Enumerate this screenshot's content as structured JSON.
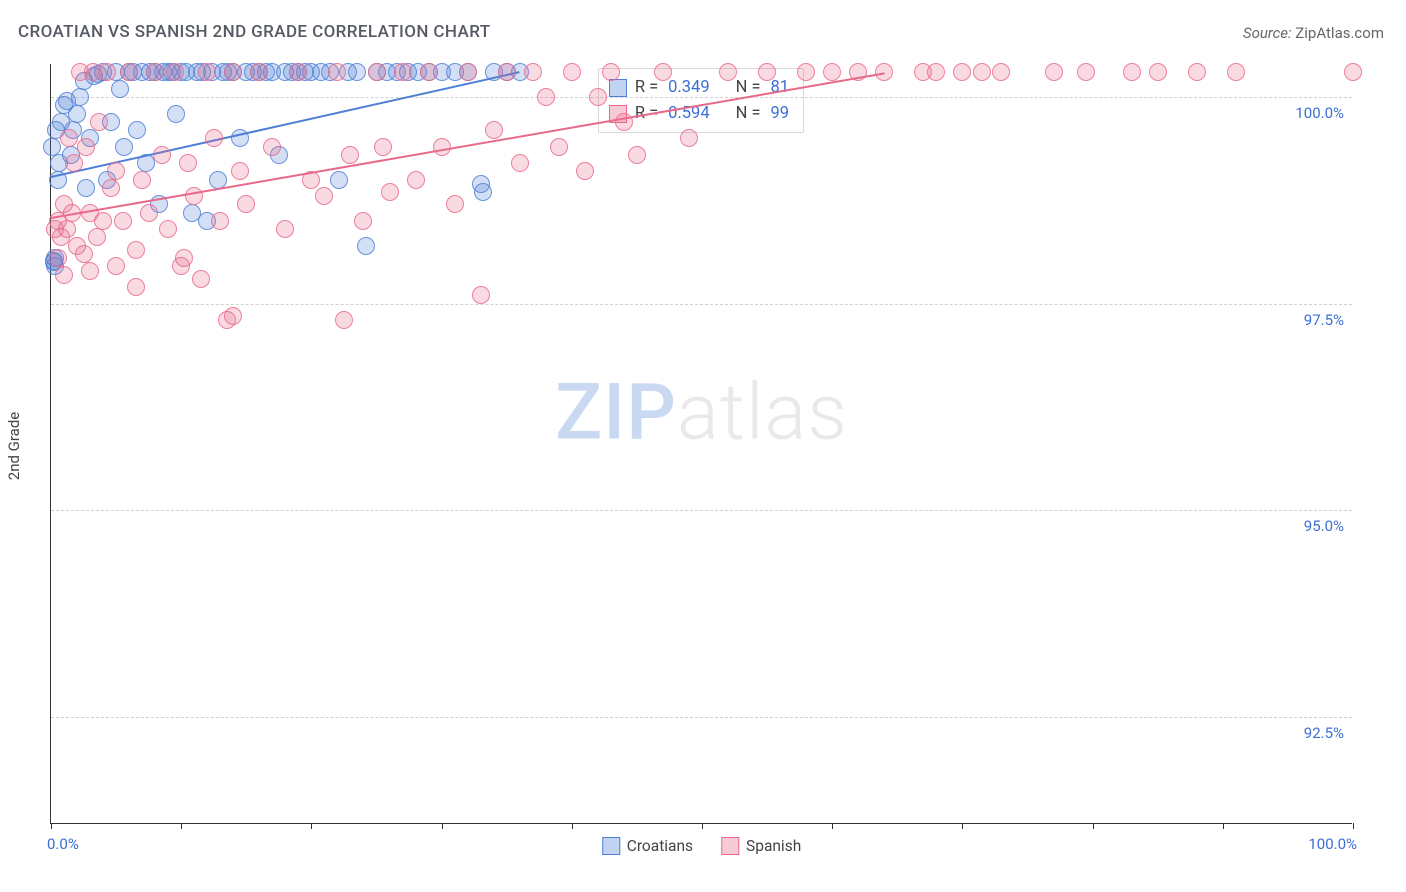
{
  "title": "CROATIAN VS SPANISH 2ND GRADE CORRELATION CHART",
  "source_label": "Source: ",
  "source_value": "ZipAtlas.com",
  "y_axis_label": "2nd Grade",
  "watermark": {
    "part1": "ZIP",
    "part2": "atlas"
  },
  "chart": {
    "type": "scatter",
    "background_color": "#ffffff",
    "grid_color": "#d0d0d0",
    "axis_color": "#333333",
    "xlim": [
      0,
      100
    ],
    "ylim": [
      91.2,
      100.4
    ],
    "xtick_positions": [
      0,
      10,
      20,
      30,
      40,
      50,
      60,
      70,
      80,
      90,
      100
    ],
    "xtick_labels": {
      "0": "0.0%",
      "100": "100.0%"
    },
    "ytick_positions": [
      92.5,
      95.0,
      97.5,
      100.0
    ],
    "ytick_labels": [
      "92.5%",
      "95.0%",
      "97.5%",
      "100.0%"
    ],
    "marker_radius": 9,
    "marker_fill_opacity": 0.25,
    "marker_stroke_opacity": 0.8,
    "marker_stroke_width": 1.2,
    "series": [
      {
        "name": "Croatians",
        "color": "#4f7fd6",
        "R": "0.349",
        "N": "81",
        "trend": {
          "x1": 0,
          "y1": 99.05,
          "x2": 36,
          "y2": 100.32
        },
        "points": [
          [
            0.2,
            98.0
          ],
          [
            0.3,
            98.05
          ],
          [
            0.1,
            99.4
          ],
          [
            0.5,
            99.0
          ],
          [
            0.6,
            99.2
          ],
          [
            0.4,
            99.6
          ],
          [
            0.8,
            99.7
          ],
          [
            1.0,
            99.9
          ],
          [
            1.2,
            99.95
          ],
          [
            1.5,
            99.3
          ],
          [
            1.7,
            99.6
          ],
          [
            2.0,
            99.8
          ],
          [
            2.2,
            100.0
          ],
          [
            2.5,
            100.2
          ],
          [
            2.7,
            98.9
          ],
          [
            3.0,
            99.5
          ],
          [
            3.3,
            100.25
          ],
          [
            3.6,
            100.28
          ],
          [
            4.0,
            100.3
          ],
          [
            4.3,
            99.0
          ],
          [
            4.6,
            99.7
          ],
          [
            5.0,
            100.3
          ],
          [
            5.3,
            100.1
          ],
          [
            5.6,
            99.4
          ],
          [
            6.0,
            100.3
          ],
          [
            6.3,
            100.3
          ],
          [
            6.6,
            99.6
          ],
          [
            7.0,
            100.3
          ],
          [
            7.3,
            99.2
          ],
          [
            7.6,
            100.3
          ],
          [
            8.0,
            100.3
          ],
          [
            8.3,
            98.7
          ],
          [
            8.6,
            100.3
          ],
          [
            9.0,
            100.3
          ],
          [
            9.3,
            100.3
          ],
          [
            9.6,
            99.8
          ],
          [
            10.0,
            100.3
          ],
          [
            10.4,
            100.3
          ],
          [
            10.8,
            98.6
          ],
          [
            11.2,
            100.3
          ],
          [
            11.6,
            100.3
          ],
          [
            12.0,
            98.5
          ],
          [
            12.4,
            100.3
          ],
          [
            12.8,
            99.0
          ],
          [
            13.2,
            100.3
          ],
          [
            13.6,
            100.3
          ],
          [
            14.0,
            100.3
          ],
          [
            14.5,
            99.5
          ],
          [
            15.0,
            100.3
          ],
          [
            15.5,
            100.3
          ],
          [
            16.0,
            100.3
          ],
          [
            16.5,
            100.3
          ],
          [
            17.0,
            100.3
          ],
          [
            17.5,
            99.3
          ],
          [
            18.0,
            100.3
          ],
          [
            18.5,
            100.3
          ],
          [
            19.0,
            100.3
          ],
          [
            19.5,
            100.3
          ],
          [
            20.0,
            100.3
          ],
          [
            20.7,
            100.3
          ],
          [
            21.4,
            100.3
          ],
          [
            22.1,
            99.0
          ],
          [
            22.8,
            100.3
          ],
          [
            23.5,
            100.3
          ],
          [
            24.2,
            98.2
          ],
          [
            25.0,
            100.3
          ],
          [
            25.8,
            100.3
          ],
          [
            26.6,
            100.3
          ],
          [
            27.4,
            100.3
          ],
          [
            28.2,
            100.3
          ],
          [
            29.0,
            100.3
          ],
          [
            30.0,
            100.3
          ],
          [
            31.0,
            100.3
          ],
          [
            32.0,
            100.3
          ],
          [
            33.0,
            98.95
          ],
          [
            33.2,
            98.85
          ],
          [
            34.0,
            100.3
          ],
          [
            35.0,
            100.3
          ],
          [
            36.0,
            100.3
          ],
          [
            0.3,
            97.95
          ],
          [
            0.25,
            98.02
          ]
        ]
      },
      {
        "name": "Spanish",
        "color": "#e86a8a",
        "R": "0.594",
        "N": "99",
        "trend": {
          "x1": 0,
          "y1": 98.55,
          "x2": 64,
          "y2": 100.3
        },
        "points": [
          [
            0.3,
            98.4
          ],
          [
            0.5,
            98.5
          ],
          [
            0.8,
            98.3
          ],
          [
            1.0,
            98.7
          ],
          [
            1.2,
            98.4
          ],
          [
            1.4,
            99.5
          ],
          [
            1.6,
            98.6
          ],
          [
            1.8,
            99.2
          ],
          [
            2.0,
            98.2
          ],
          [
            2.2,
            100.3
          ],
          [
            2.5,
            98.1
          ],
          [
            2.7,
            99.4
          ],
          [
            3.0,
            98.6
          ],
          [
            3.2,
            100.3
          ],
          [
            3.5,
            98.3
          ],
          [
            3.7,
            99.7
          ],
          [
            4.0,
            98.5
          ],
          [
            4.3,
            100.3
          ],
          [
            4.6,
            98.9
          ],
          [
            5.0,
            99.1
          ],
          [
            5.5,
            98.5
          ],
          [
            6.0,
            100.3
          ],
          [
            6.5,
            97.7
          ],
          [
            7.0,
            99.0
          ],
          [
            7.5,
            98.6
          ],
          [
            8.0,
            100.3
          ],
          [
            8.5,
            99.3
          ],
          [
            9.0,
            98.4
          ],
          [
            9.5,
            100.3
          ],
          [
            10.0,
            97.95
          ],
          [
            10.5,
            99.2
          ],
          [
            11.0,
            98.8
          ],
          [
            11.5,
            97.8
          ],
          [
            12.0,
            100.3
          ],
          [
            12.5,
            99.5
          ],
          [
            13.0,
            98.5
          ],
          [
            13.5,
            97.3
          ],
          [
            14.0,
            100.3
          ],
          [
            14.5,
            99.1
          ],
          [
            15.0,
            98.7
          ],
          [
            16.0,
            100.3
          ],
          [
            17.0,
            99.4
          ],
          [
            18.0,
            98.4
          ],
          [
            19.0,
            100.3
          ],
          [
            20.0,
            99.0
          ],
          [
            21.0,
            98.8
          ],
          [
            22.0,
            100.3
          ],
          [
            22.5,
            97.3
          ],
          [
            23.0,
            99.3
          ],
          [
            24.0,
            98.5
          ],
          [
            25.0,
            100.3
          ],
          [
            25.5,
            99.4
          ],
          [
            26.0,
            98.85
          ],
          [
            27.0,
            100.3
          ],
          [
            28.0,
            99.0
          ],
          [
            29.0,
            100.3
          ],
          [
            30.0,
            99.4
          ],
          [
            31.0,
            98.7
          ],
          [
            32.0,
            100.3
          ],
          [
            33.0,
            97.6
          ],
          [
            34.0,
            99.6
          ],
          [
            35.0,
            100.3
          ],
          [
            36.0,
            99.2
          ],
          [
            37.0,
            100.3
          ],
          [
            38.0,
            100.0
          ],
          [
            39.0,
            99.4
          ],
          [
            40.0,
            100.3
          ],
          [
            41.0,
            99.1
          ],
          [
            42.0,
            100.0
          ],
          [
            43.0,
            100.3
          ],
          [
            44.0,
            99.7
          ],
          [
            45.0,
            99.3
          ],
          [
            47.0,
            100.3
          ],
          [
            49.0,
            99.5
          ],
          [
            52.0,
            100.3
          ],
          [
            55.0,
            100.3
          ],
          [
            58.0,
            100.3
          ],
          [
            60.0,
            100.3
          ],
          [
            62.0,
            100.3
          ],
          [
            64.0,
            100.3
          ],
          [
            67.0,
            100.3
          ],
          [
            68.0,
            100.3
          ],
          [
            70.0,
            100.3
          ],
          [
            71.5,
            100.3
          ],
          [
            73.0,
            100.3
          ],
          [
            77.0,
            100.3
          ],
          [
            79.5,
            100.3
          ],
          [
            83.0,
            100.3
          ],
          [
            85.0,
            100.3
          ],
          [
            88.0,
            100.3
          ],
          [
            91.0,
            100.3
          ],
          [
            100.0,
            100.3
          ],
          [
            14.0,
            97.35
          ],
          [
            10.2,
            98.05
          ],
          [
            3.0,
            97.9
          ],
          [
            5.0,
            97.95
          ],
          [
            1.0,
            97.85
          ],
          [
            0.5,
            98.05
          ],
          [
            6.5,
            98.15
          ]
        ]
      }
    ]
  },
  "stats_legend": {
    "r_label": "R =",
    "n_label": "N ="
  },
  "bottom_legend": {
    "s1": "Croatians",
    "s2": "Spanish"
  }
}
